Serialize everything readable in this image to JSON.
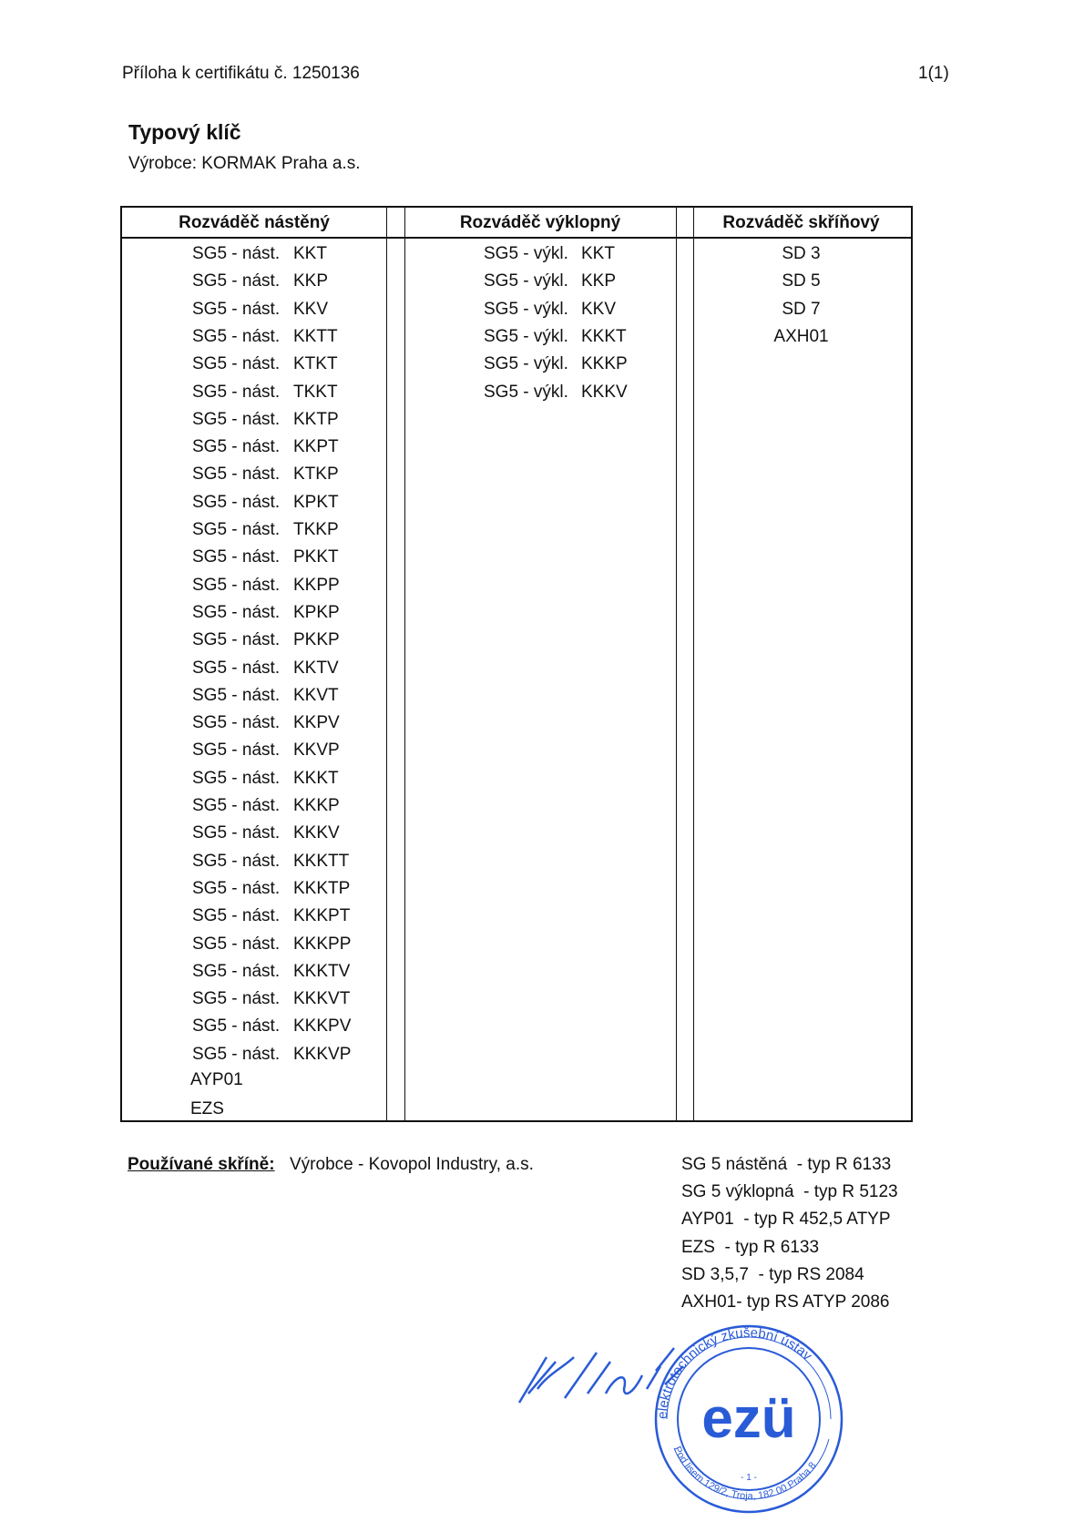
{
  "header": {
    "left": "Příloha k certifikátu č. 1250136",
    "right": "1(1)"
  },
  "title": "Typový klíč",
  "manufacturer": "Výrobce: KORMAK Praha a.s.",
  "table": {
    "columns": [
      "Rozváděč nástěný",
      "Rozváděč výklopný",
      "Rozváděč skříňový"
    ],
    "nastenny": [
      [
        "SG5 - nást.",
        "KKT"
      ],
      [
        "SG5 - nást.",
        "KKP"
      ],
      [
        "SG5 - nást.",
        "KKV"
      ],
      [
        "SG5 - nást.",
        "KKTT"
      ],
      [
        "SG5 - nást.",
        "KTKT"
      ],
      [
        "SG5 - nást.",
        "TKKT"
      ],
      [
        "SG5 - nást.",
        "KKTP"
      ],
      [
        "SG5 - nást.",
        "KKPT"
      ],
      [
        "SG5 - nást.",
        "KTKP"
      ],
      [
        "SG5 - nást.",
        "KPKT"
      ],
      [
        "SG5 - nást.",
        "TKKP"
      ],
      [
        "SG5 - nást.",
        "PKKT"
      ],
      [
        "SG5 - nást.",
        "KKPP"
      ],
      [
        "SG5 - nást.",
        "KPKP"
      ],
      [
        "SG5 - nást.",
        "PKKP"
      ],
      [
        "SG5 - nást.",
        "KKTV"
      ],
      [
        "SG5 - nást.",
        "KKVT"
      ],
      [
        "SG5 - nást.",
        "KKPV"
      ],
      [
        "SG5 - nást.",
        "KKVP"
      ],
      [
        "SG5 - nást.",
        "KKKT"
      ],
      [
        "SG5 - nást.",
        "KKKP"
      ],
      [
        "SG5 - nást.",
        "KKKV"
      ],
      [
        "SG5 - nást.",
        "KKKTT"
      ],
      [
        "SG5 - nást.",
        "KKKTP"
      ],
      [
        "SG5 - nást.",
        "KKKPT"
      ],
      [
        "SG5 - nást.",
        "KKKPP"
      ],
      [
        "SG5 - nást.",
        "KKKTV"
      ],
      [
        "SG5 - nást.",
        "KKKVT"
      ],
      [
        "SG5 - nást.",
        "KKKPV"
      ],
      [
        "SG5 - nást.",
        "KKKVP"
      ]
    ],
    "nastenny_extra": [
      "AYP01",
      "EZS"
    ],
    "vyklopny": [
      [
        "SG5 - výkl.",
        "KKT"
      ],
      [
        "SG5 - výkl.",
        "KKP"
      ],
      [
        "SG5 - výkl.",
        "KKV"
      ],
      [
        "SG5 - výkl.",
        "KKKT"
      ],
      [
        "SG5 - výkl.",
        "KKKP"
      ],
      [
        "SG5 - výkl.",
        "KKKV"
      ]
    ],
    "skrinovy": [
      "SD 3",
      "SD 5",
      "SD 7",
      "AXH01"
    ]
  },
  "footer": {
    "label": "Používané skříně:",
    "maker": "Výrobce - Kovopol Industry, a.s.",
    "types": [
      "SG 5 nástěná  - typ R 6133",
      "SG 5 výklopná  - typ R 5123",
      "AYP01  - typ R 452,5 ATYP",
      "EZS  - typ R 6133",
      "SD 3,5,7  - typ RS 2084",
      "AXH01- typ RS ATYP 2086"
    ]
  },
  "stamp": {
    "logo": "ezü",
    "ring_top": "elektrotechnický zkušební ústav",
    "ring_bottom": "Pod lisem 129/2, Troja, 182 00 Praha 8",
    "number": "- 1 -",
    "ink_color": "#2a5bd7"
  }
}
